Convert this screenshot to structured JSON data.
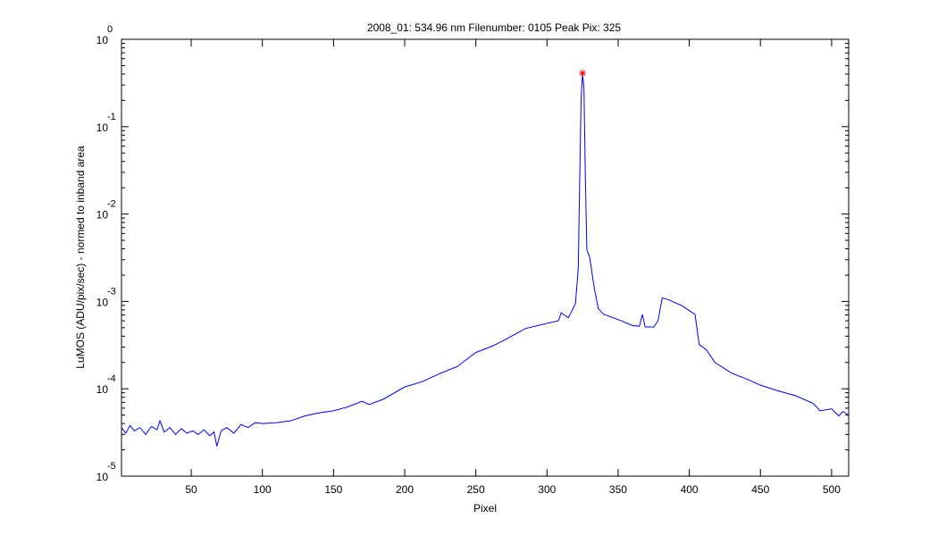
{
  "chart_data": {
    "type": "line",
    "title": "2008_01: 534.96 nm  Filenumber: 0105 Peak Pix: 325",
    "x_label": "Pixel",
    "y_label": "LuMOS (ADU/pix/sec) - normed to inband area",
    "xlim": [
      1,
      512
    ],
    "ylim": [
      1e-05,
      1
    ],
    "y_log": true,
    "xticks": [
      50,
      100,
      150,
      200,
      250,
      300,
      350,
      400,
      450,
      500
    ],
    "yticks": [
      {
        "value": 1e-05,
        "label": "10",
        "exponent": "-5"
      },
      {
        "value": 0.0001,
        "label": "10",
        "exponent": "-4"
      },
      {
        "value": 0.001,
        "label": "10",
        "exponent": "-3"
      },
      {
        "value": 0.01,
        "label": "10",
        "exponent": "-2"
      },
      {
        "value": 0.1,
        "label": "10",
        "exponent": "-1"
      },
      {
        "value": 1,
        "label": "10",
        "exponent": "0"
      }
    ],
    "grid": false,
    "series": [
      {
        "name": "LuMOS",
        "color": "#0000ff",
        "x": [
          1,
          4,
          7,
          10,
          14,
          18,
          22,
          26,
          28,
          31,
          35,
          39,
          43,
          47,
          51,
          55,
          59,
          63,
          66,
          68,
          71,
          75,
          80,
          85,
          90,
          95,
          100,
          110,
          120,
          130,
          140,
          150,
          160,
          170,
          175,
          185,
          200,
          212,
          225,
          237,
          250,
          262,
          270,
          285,
          300,
          308,
          310,
          315,
          320,
          322,
          323,
          324,
          325,
          326,
          327,
          328,
          330,
          333,
          336,
          340,
          350,
          360,
          365,
          367,
          369,
          375,
          378,
          381,
          385,
          395,
          404,
          407,
          412,
          418,
          430,
          440,
          450,
          462,
          475,
          487,
          492,
          500,
          505,
          508,
          512
        ],
        "values": [
          3.6e-05,
          3.1e-05,
          3.8e-05,
          3.3e-05,
          3.6e-05,
          3e-05,
          3.7e-05,
          3.4e-05,
          4.3e-05,
          3.2e-05,
          3.6e-05,
          3e-05,
          3.5e-05,
          3.1e-05,
          3.3e-05,
          3e-05,
          3.4e-05,
          2.9e-05,
          3.2e-05,
          2.2e-05,
          3.3e-05,
          3.6e-05,
          3.1e-05,
          3.9e-05,
          3.6e-05,
          4.1e-05,
          4e-05,
          4.1e-05,
          4.3e-05,
          4.9e-05,
          5.3e-05,
          5.6e-05,
          6.2e-05,
          7.2e-05,
          6.6e-05,
          7.6e-05,
          0.000105,
          0.00012,
          0.00015,
          0.00018,
          0.00026,
          0.00031,
          0.00036,
          0.00049,
          0.00056,
          0.0006,
          0.00074,
          0.00065,
          0.00094,
          0.0024,
          0.025,
          0.21,
          0.41,
          0.27,
          0.025,
          0.0039,
          0.0032,
          0.0015,
          0.00083,
          0.00071,
          0.00062,
          0.00053,
          0.00052,
          0.00071,
          0.00051,
          0.00051,
          0.0006,
          0.0011,
          0.00105,
          0.00089,
          0.00071,
          0.00032,
          0.00028,
          0.0002,
          0.00015,
          0.00013,
          0.00011,
          9.5e-05,
          8.3e-05,
          6.8e-05,
          5.6e-05,
          5.9e-05,
          4.9e-05,
          5.5e-05,
          5e-05
        ]
      }
    ],
    "marker": {
      "x": 325,
      "y": 0.41,
      "color": "#ff0000"
    }
  }
}
